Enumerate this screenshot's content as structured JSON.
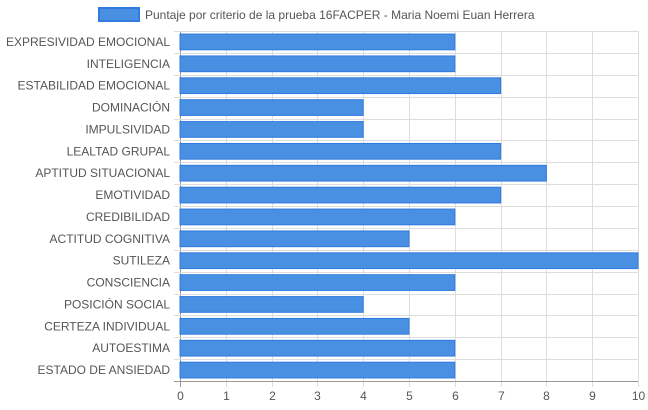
{
  "chart_data": {
    "type": "bar",
    "orientation": "horizontal",
    "categories": [
      "EXPRESIVIDAD EMOCIONAL",
      "INTELIGENCIA",
      "ESTABILIDAD EMOCIONAL",
      "DOMINACIÓN",
      "IMPULSIVIDAD",
      "LEALTAD GRUPAL",
      "APTITUD SITUACIONAL",
      "EMOTIVIDAD",
      "CREDIBILIDAD",
      "ACTITUD COGNITIVA",
      "SUTILEZA",
      "CONSCIENCIA",
      "POSICIÓN SOCIAL",
      "CERTEZA INDIVIDUAL",
      "AUTOESTIMA",
      "ESTADO DE ANSIEDAD"
    ],
    "series": [
      {
        "name": "Puntaje por criterio de la prueba 16FACPER - Maria Noemi Euan Herrera",
        "values": [
          6,
          6,
          7,
          4,
          4,
          7,
          8,
          7,
          6,
          5,
          10,
          6,
          4,
          5,
          6,
          6
        ],
        "color": "#4a90e2",
        "border_color": "#2f7be0"
      }
    ],
    "xlim": [
      0,
      10
    ],
    "x_ticks": [
      "0",
      "1",
      "2",
      "3",
      "4",
      "5",
      "6",
      "7",
      "8",
      "9",
      "10"
    ],
    "grid": true,
    "legend_position": "top",
    "grid_color": "#dddddd",
    "axis_line_color": "#999999"
  }
}
